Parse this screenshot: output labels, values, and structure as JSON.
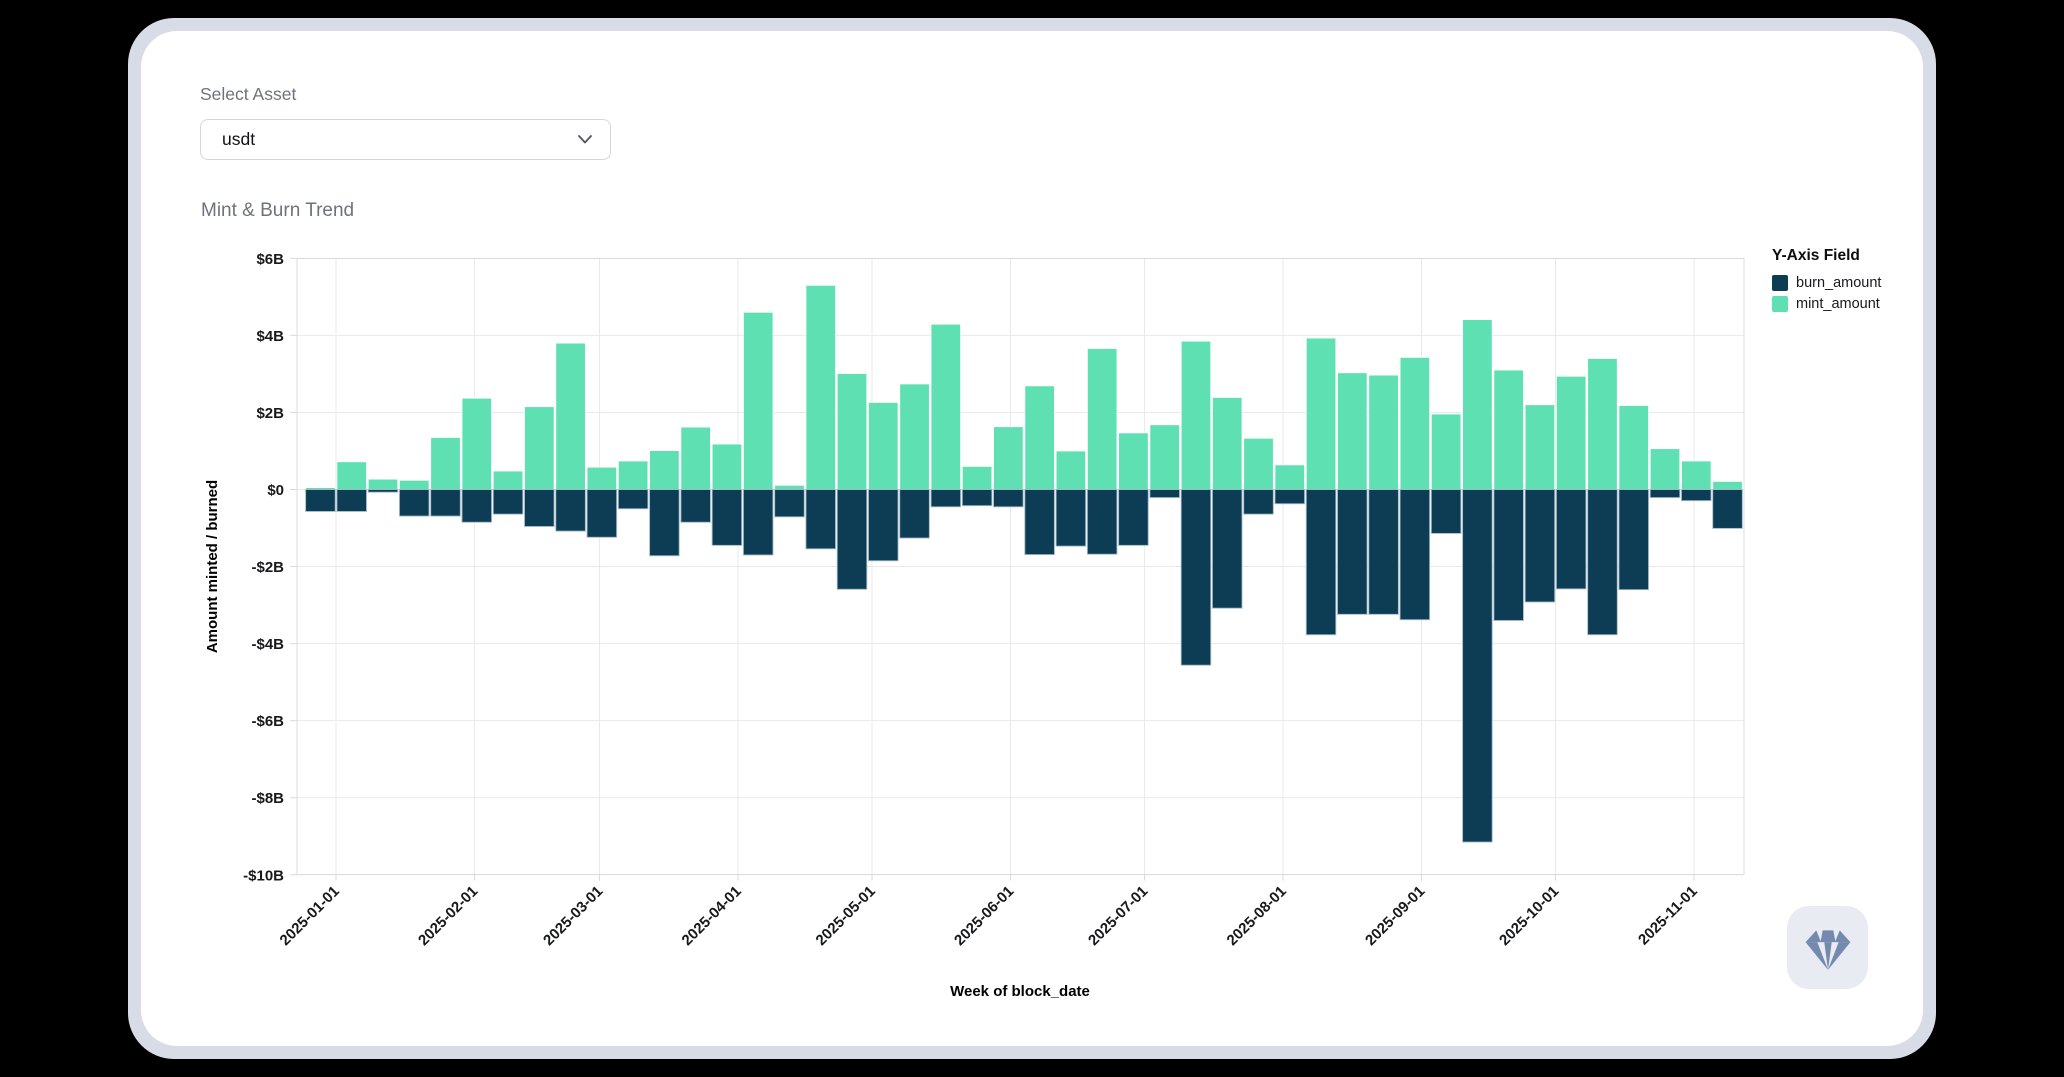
{
  "ui": {
    "select_asset": {
      "label": "Select Asset",
      "value": "usdt"
    },
    "chart_title": "Mint & Burn Trend",
    "gem_button": {
      "icon": "gem"
    }
  },
  "colors": {
    "page_background": "#000000",
    "frame": "#d8dce6",
    "card": "#ffffff",
    "burn": "#0c3d54",
    "mint": "#5fe0b3",
    "gem_icon": "#7389ae",
    "gem_button_bg": "#e8ebf2"
  },
  "chart_data": {
    "type": "bar",
    "variant": "diverging-stacked-weekly",
    "title": "Mint & Burn Trend",
    "xlabel": "Week of block_date",
    "ylabel": "Amount minted / burned",
    "unit": "billions USD",
    "grid": true,
    "ylim": [
      -10,
      6
    ],
    "x_domain": [
      "2024-12-23",
      "2025-11-13"
    ],
    "y_ticks": [
      {
        "value": 6,
        "label": "$6B"
      },
      {
        "value": 4,
        "label": "$4B"
      },
      {
        "value": 2,
        "label": "$2B"
      },
      {
        "value": 0,
        "label": "$0"
      },
      {
        "value": -2,
        "label": "-$2B"
      },
      {
        "value": -4,
        "label": "-$4B"
      },
      {
        "value": -6,
        "label": "-$6B"
      },
      {
        "value": -8,
        "label": "-$8B"
      },
      {
        "value": -10,
        "label": "-$10B"
      }
    ],
    "x_ticks": [
      {
        "date": "2025-01-01",
        "label": "2025-01-01"
      },
      {
        "date": "2025-02-01",
        "label": "2025-02-01"
      },
      {
        "date": "2025-03-01",
        "label": "2025-03-01"
      },
      {
        "date": "2025-04-01",
        "label": "2025-04-01"
      },
      {
        "date": "2025-05-01",
        "label": "2025-05-01"
      },
      {
        "date": "2025-06-01",
        "label": "2025-06-01"
      },
      {
        "date": "2025-07-01",
        "label": "2025-07-01"
      },
      {
        "date": "2025-08-01",
        "label": "2025-08-01"
      },
      {
        "date": "2025-09-01",
        "label": "2025-09-01"
      },
      {
        "date": "2025-10-01",
        "label": "2025-10-01"
      },
      {
        "date": "2025-11-01",
        "label": "2025-11-01"
      }
    ],
    "legend": {
      "title": "Y-Axis Field",
      "position": "top-right",
      "series": [
        {
          "name": "burn_amount",
          "color": "#0c3d54"
        },
        {
          "name": "mint_amount",
          "color": "#5fe0b3"
        }
      ]
    },
    "weeks": [
      {
        "week_start": "2024-12-25",
        "mint": 0.05,
        "burn": -0.57
      },
      {
        "week_start": "2025-01-01",
        "mint": 0.72,
        "burn": -0.57
      },
      {
        "week_start": "2025-01-08",
        "mint": 0.27,
        "burn": -0.07
      },
      {
        "week_start": "2025-01-15",
        "mint": 0.24,
        "burn": -0.69
      },
      {
        "week_start": "2025-01-22",
        "mint": 1.35,
        "burn": -0.69
      },
      {
        "week_start": "2025-01-29",
        "mint": 2.37,
        "burn": -0.85
      },
      {
        "week_start": "2025-02-05",
        "mint": 0.48,
        "burn": -0.64
      },
      {
        "week_start": "2025-02-12",
        "mint": 2.15,
        "burn": -0.96
      },
      {
        "week_start": "2025-02-19",
        "mint": 3.8,
        "burn": -1.08
      },
      {
        "week_start": "2025-02-26",
        "mint": 0.58,
        "burn": -1.24
      },
      {
        "week_start": "2025-03-05",
        "mint": 0.74,
        "burn": -0.5
      },
      {
        "week_start": "2025-03-12",
        "mint": 1.01,
        "burn": -1.72
      },
      {
        "week_start": "2025-03-19",
        "mint": 1.62,
        "burn": -0.85
      },
      {
        "week_start": "2025-03-26",
        "mint": 1.18,
        "burn": -1.45
      },
      {
        "week_start": "2025-04-02",
        "mint": 4.6,
        "burn": -1.7
      },
      {
        "week_start": "2025-04-09",
        "mint": 0.11,
        "burn": -0.71
      },
      {
        "week_start": "2025-04-16",
        "mint": 5.3,
        "burn": -1.54
      },
      {
        "week_start": "2025-04-23",
        "mint": 3.01,
        "burn": -2.59
      },
      {
        "week_start": "2025-04-30",
        "mint": 2.26,
        "burn": -1.85
      },
      {
        "week_start": "2025-05-07",
        "mint": 2.74,
        "burn": -1.26
      },
      {
        "week_start": "2025-05-14",
        "mint": 4.29,
        "burn": -0.45
      },
      {
        "week_start": "2025-05-21",
        "mint": 0.6,
        "burn": -0.42
      },
      {
        "week_start": "2025-05-28",
        "mint": 1.63,
        "burn": -0.45
      },
      {
        "week_start": "2025-06-04",
        "mint": 2.69,
        "burn": -1.69
      },
      {
        "week_start": "2025-06-11",
        "mint": 1.0,
        "burn": -1.47
      },
      {
        "week_start": "2025-06-18",
        "mint": 3.66,
        "burn": -1.68
      },
      {
        "week_start": "2025-06-25",
        "mint": 1.47,
        "burn": -1.45
      },
      {
        "week_start": "2025-07-02",
        "mint": 1.68,
        "burn": -0.21
      },
      {
        "week_start": "2025-07-09",
        "mint": 3.85,
        "burn": -4.56
      },
      {
        "week_start": "2025-07-16",
        "mint": 2.39,
        "burn": -3.08
      },
      {
        "week_start": "2025-07-23",
        "mint": 1.33,
        "burn": -0.64
      },
      {
        "week_start": "2025-07-30",
        "mint": 0.64,
        "burn": -0.37
      },
      {
        "week_start": "2025-08-06",
        "mint": 3.93,
        "burn": -3.77
      },
      {
        "week_start": "2025-08-13",
        "mint": 3.03,
        "burn": -3.24
      },
      {
        "week_start": "2025-08-20",
        "mint": 2.97,
        "burn": -3.24
      },
      {
        "week_start": "2025-08-27",
        "mint": 3.43,
        "burn": -3.38
      },
      {
        "week_start": "2025-09-03",
        "mint": 1.96,
        "burn": -1.14
      },
      {
        "week_start": "2025-09-10",
        "mint": 4.41,
        "burn": -9.15
      },
      {
        "week_start": "2025-09-17",
        "mint": 3.1,
        "burn": -3.4
      },
      {
        "week_start": "2025-09-24",
        "mint": 2.2,
        "burn": -2.92
      },
      {
        "week_start": "2025-10-01",
        "mint": 2.94,
        "burn": -2.58
      },
      {
        "week_start": "2025-10-08",
        "mint": 3.4,
        "burn": -3.77
      },
      {
        "week_start": "2025-10-15",
        "mint": 2.18,
        "burn": -2.6
      },
      {
        "week_start": "2025-10-22",
        "mint": 1.06,
        "burn": -0.21
      },
      {
        "week_start": "2025-10-29",
        "mint": 0.74,
        "burn": -0.29
      },
      {
        "week_start": "2025-11-05",
        "mint": 0.21,
        "burn": -1.01
      }
    ]
  }
}
